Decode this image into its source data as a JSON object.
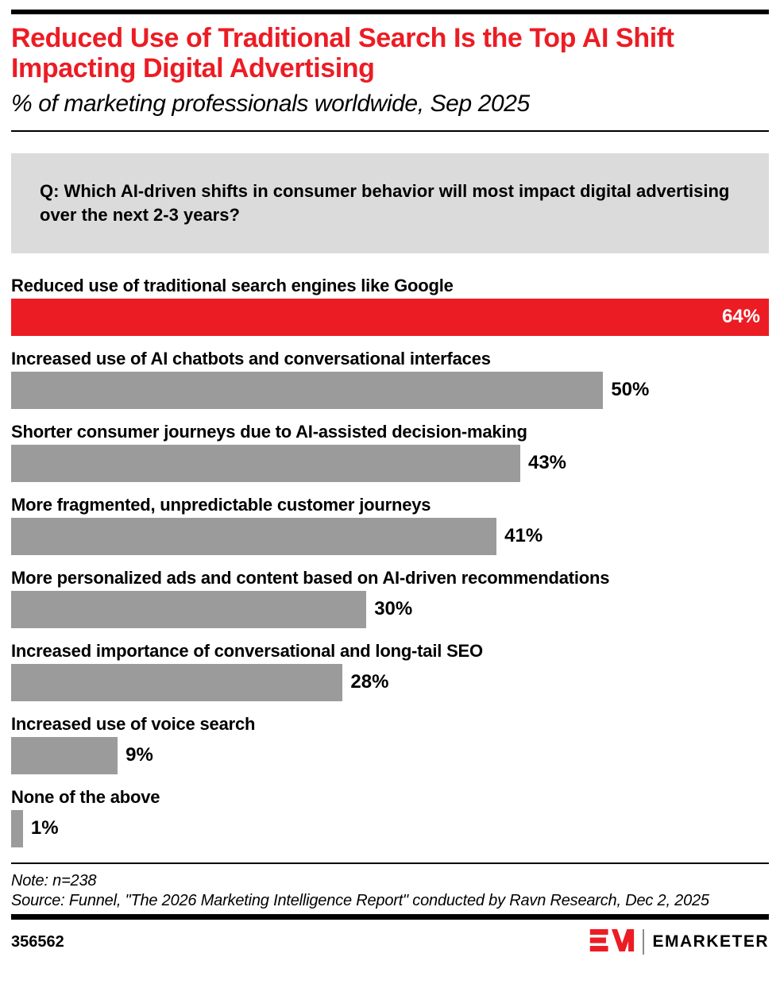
{
  "header": {
    "title": "Reduced Use of Traditional Search Is the Top AI Shift Impacting Digital Advertising",
    "subtitle": "% of marketing professionals worldwide, Sep 2025"
  },
  "question": {
    "text": "Q: Which AI-driven shifts in consumer behavior will most impact digital advertising over the next 2-3 years?"
  },
  "chart_data": {
    "type": "bar",
    "orientation": "horizontal",
    "title": "Reduced Use of Traditional Search Is the Top AI Shift Impacting Digital Advertising",
    "subtitle": "% of marketing professionals worldwide, Sep 2025",
    "categories": [
      "Reduced use of traditional search engines like Google",
      "Increased use of AI chatbots and conversational interfaces",
      "Shorter consumer journeys due to AI-assisted decision-making",
      "More fragmented, unpredictable customer journeys",
      "More personalized ads and content based on AI-driven recommendations",
      "Increased importance of conversational and long-tail SEO",
      "Increased use of voice search",
      "None of the above"
    ],
    "values": [
      64,
      50,
      43,
      41,
      30,
      28,
      9,
      1
    ],
    "value_labels": [
      "64%",
      "50%",
      "43%",
      "41%",
      "30%",
      "28%",
      "9%",
      "1%"
    ],
    "unit": "%",
    "xmax": 64,
    "highlight_index": 0,
    "grid": false,
    "legend": false,
    "value_label_placement": {
      "highlight": "inside-right-white",
      "default": "outside-right-black"
    }
  },
  "colors": {
    "accent_red": "#EC1C24",
    "bar_gray": "#9B9B9B",
    "question_bg": "#DBDBDB",
    "text": "#000000"
  },
  "footer": {
    "note": "Note: n=238",
    "source": "Source: Funnel, \"The 2026 Marketing Intelligence Report\" conducted by Ravn Research, Dec 2, 2025",
    "chart_id": "356562",
    "brand": "EMARKETER"
  }
}
